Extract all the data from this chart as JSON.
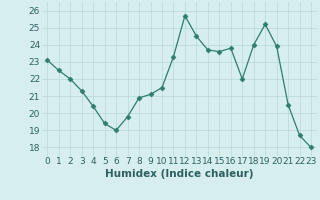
{
  "x": [
    0,
    1,
    2,
    3,
    4,
    5,
    6,
    7,
    8,
    9,
    10,
    11,
    12,
    13,
    14,
    15,
    16,
    17,
    18,
    19,
    20,
    21,
    22,
    23
  ],
  "y": [
    23.1,
    22.5,
    22.0,
    21.3,
    20.4,
    19.4,
    19.0,
    19.8,
    20.9,
    21.1,
    21.5,
    23.3,
    25.7,
    24.5,
    23.7,
    23.6,
    23.8,
    22.0,
    24.0,
    25.2,
    23.9,
    20.5,
    18.7,
    18.0
  ],
  "xlabel": "Humidex (Indice chaleur)",
  "ylim": [
    17.5,
    26.5
  ],
  "xlim": [
    -0.5,
    23.5
  ],
  "yticks": [
    18,
    19,
    20,
    21,
    22,
    23,
    24,
    25,
    26
  ],
  "xticks": [
    0,
    1,
    2,
    3,
    4,
    5,
    6,
    7,
    8,
    9,
    10,
    11,
    12,
    13,
    14,
    15,
    16,
    17,
    18,
    19,
    20,
    21,
    22,
    23
  ],
  "line_color": "#2e7d6e",
  "marker": "D",
  "marker_size": 2.5,
  "bg_color": "#d6eeee",
  "grid_color": "#b8d8d8",
  "label_fontsize": 7.5,
  "tick_fontsize": 6.5
}
